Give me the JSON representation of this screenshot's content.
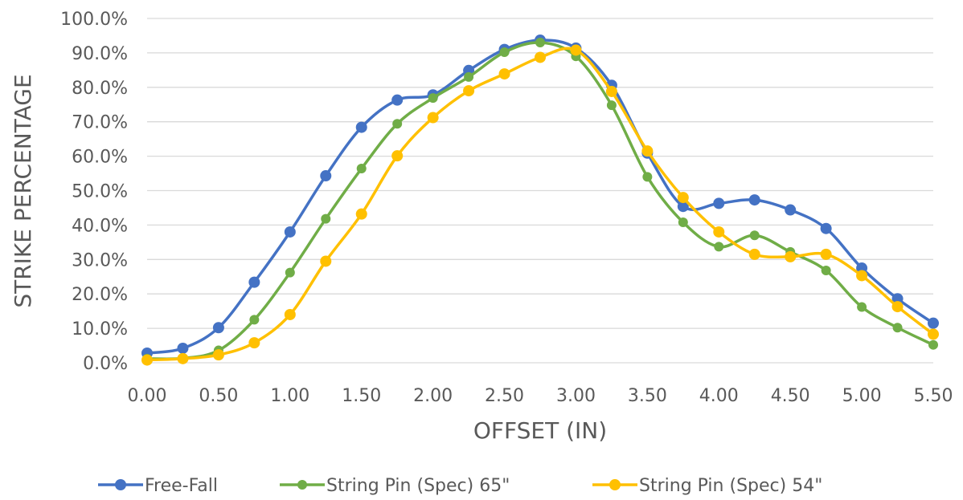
{
  "chart_data": {
    "type": "line",
    "title": "",
    "xlabel": "OFFSET (IN)",
    "ylabel": "STRIKE PERCENTAGE",
    "x": [
      0.0,
      0.25,
      0.5,
      0.75,
      1.0,
      1.25,
      1.5,
      1.75,
      2.0,
      2.25,
      2.5,
      2.75,
      3.0,
      3.25,
      3.5,
      3.75,
      4.0,
      4.25,
      4.5,
      4.75,
      5.0,
      5.25,
      5.5
    ],
    "x_tick_labels": [
      "0.00",
      "0.50",
      "1.00",
      "1.50",
      "2.00",
      "2.50",
      "3.00",
      "3.50",
      "4.00",
      "4.50",
      "5.00",
      "5.50"
    ],
    "x_ticks": [
      0,
      0.5,
      1.0,
      1.5,
      2.0,
      2.5,
      3.0,
      3.5,
      4.0,
      4.5,
      5.0,
      5.5
    ],
    "y_tick_labels": [
      "0.0%",
      "10.0%",
      "20.0%",
      "30.0%",
      "40.0%",
      "50.0%",
      "60.0%",
      "70.0%",
      "80.0%",
      "90.0%",
      "100.0%"
    ],
    "y_ticks": [
      0,
      10,
      20,
      30,
      40,
      50,
      60,
      70,
      80,
      90,
      100
    ],
    "xlim": [
      0,
      5.5
    ],
    "ylim": [
      0,
      100
    ],
    "grid": "horizontal",
    "legend_position": "bottom",
    "smooth": true,
    "series": [
      {
        "name": "Free-Fall",
        "color": "#4472c4",
        "values": [
          2.8,
          4.2,
          10.2,
          23.4,
          38.0,
          54.3,
          68.4,
          76.3,
          77.8,
          84.9,
          91.0,
          93.7,
          91.4,
          80.6,
          60.9,
          45.4,
          46.3,
          47.3,
          44.4,
          39.0,
          27.5,
          18.6,
          11.5
        ]
      },
      {
        "name": "String Pin (Spec) 65\"",
        "color": "#70ad47",
        "values": [
          1.2,
          1.3,
          3.6,
          12.5,
          26.2,
          41.8,
          56.4,
          69.4,
          76.9,
          83.0,
          90.2,
          93.0,
          89.0,
          74.8,
          54.0,
          40.8,
          33.7,
          37.0,
          32.2,
          26.8,
          16.2,
          10.2,
          5.2
        ]
      },
      {
        "name": "String Pin (Spec) 54\"",
        "color": "#ffc000",
        "values": [
          0.8,
          1.2,
          2.3,
          5.8,
          14.0,
          29.5,
          43.2,
          60.1,
          71.2,
          79.0,
          83.9,
          88.7,
          90.8,
          78.8,
          61.5,
          48.0,
          38.0,
          31.5,
          30.8,
          31.5,
          25.3,
          16.3,
          8.3
        ]
      }
    ]
  }
}
